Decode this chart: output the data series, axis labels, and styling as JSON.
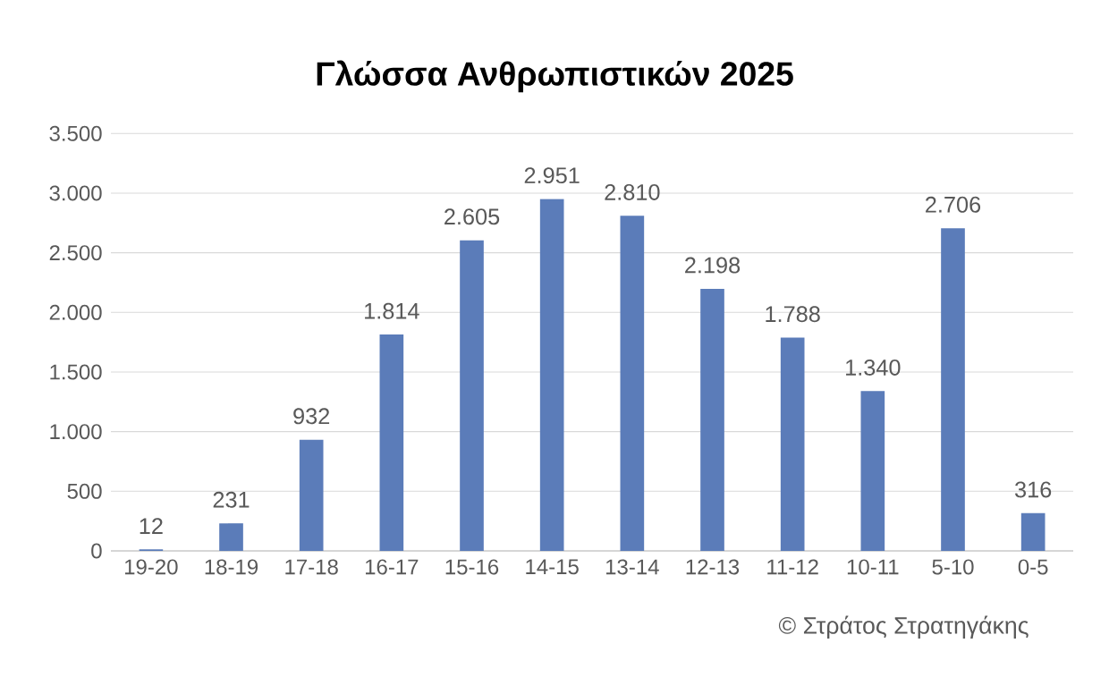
{
  "chart_data": {
    "type": "bar",
    "title": "Γλώσσα Ανθρωπιστικών 2025",
    "categories": [
      "19-20",
      "18-19",
      "17-18",
      "16-17",
      "15-16",
      "14-15",
      "13-14",
      "12-13",
      "11-12",
      "10-11",
      "5-10",
      "0-5"
    ],
    "values": [
      12,
      231,
      932,
      1814,
      2605,
      2951,
      2810,
      2198,
      1788,
      1340,
      2706,
      316
    ],
    "value_labels": [
      "12",
      "231",
      "932",
      "1.814",
      "2.605",
      "2.951",
      "2.810",
      "2.198",
      "1.788",
      "1.340",
      "2.706",
      "316"
    ],
    "color": "#5b7cb9",
    "ylim": [
      0,
      3500
    ],
    "yticks": [
      0,
      500,
      {
        "value": 1000,
        "label": "1.000"
      },
      {
        "value": 1500,
        "label": "1.500"
      },
      {
        "value": 2000,
        "label": "2.000"
      },
      {
        "value": 2500,
        "label": "2.500"
      },
      {
        "value": 3000,
        "label": "3.000"
      },
      {
        "value": 3500,
        "label": "3.500"
      }
    ],
    "grid": "y",
    "annotations": [
      "© Στράτος Στρατηγάκης"
    ]
  }
}
